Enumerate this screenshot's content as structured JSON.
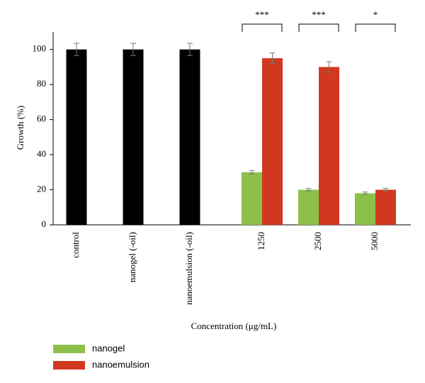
{
  "chart_data": {
    "type": "bar",
    "x_label": "Concentration (μg/mL)",
    "y_label": "Growth (%)",
    "categories": [
      "control",
      "nanogel (-oil)",
      "nanoemulsion (-oil)",
      "1250",
      "2500",
      "5000"
    ],
    "values": [
      100,
      100,
      100,
      null,
      null,
      null
    ],
    "errors": [
      3.5,
      3.5,
      3.5,
      null,
      null,
      null
    ],
    "color": "#000000",
    "series": [
      {
        "name": "nanogel",
        "color": "#8dc04a",
        "values": [
          null,
          null,
          null,
          30,
          20,
          18
        ],
        "errors": [
          null,
          null,
          null,
          1,
          0.7,
          0.7
        ]
      },
      {
        "name": "nanoemulsion",
        "color": "#d0381f",
        "values": [
          null,
          null,
          null,
          95,
          90,
          20
        ],
        "errors": [
          null,
          null,
          null,
          3,
          3,
          0.8
        ]
      }
    ],
    "annotations": [
      {
        "category": "1250",
        "label": "***"
      },
      {
        "category": "2500",
        "label": "***"
      },
      {
        "category": "5000",
        "label": "*"
      }
    ],
    "ylim": [
      0,
      110
    ],
    "yticks": [
      0,
      20,
      40,
      60,
      80,
      100
    ],
    "legend": "bottom-left"
  }
}
